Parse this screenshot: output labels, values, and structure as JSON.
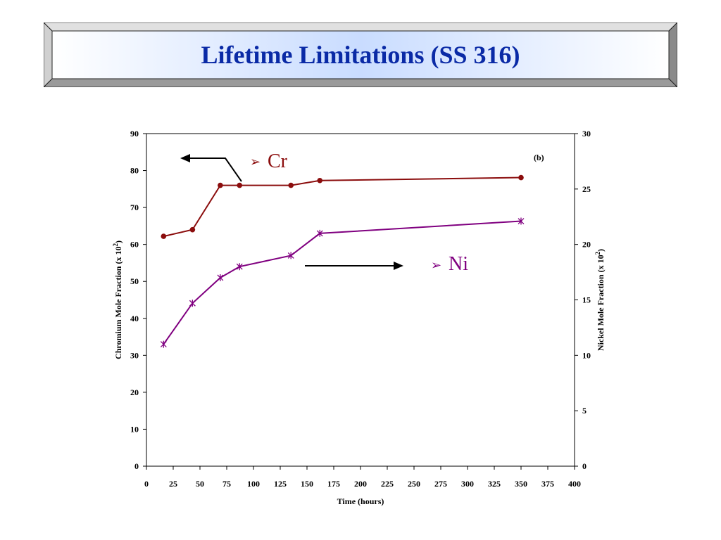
{
  "slide": {
    "title": "Lifetime Limitations (SS 316)"
  },
  "chart_data": {
    "type": "line",
    "xlabel": "Time (hours)",
    "ylabel_left": "Chromium Mole Fraction (x 10",
    "ylabel_right": "Nickel Mole Fraction (x 10",
    "ylabel_exponent": "2",
    "xlim": [
      0,
      400
    ],
    "ylim_left": [
      0,
      90
    ],
    "ylim_right": [
      0,
      30
    ],
    "x_ticks": [
      0,
      25,
      50,
      75,
      100,
      125,
      150,
      175,
      200,
      225,
      250,
      275,
      300,
      325,
      350,
      375,
      400
    ],
    "y_ticks_left": [
      0,
      10,
      20,
      30,
      40,
      50,
      60,
      70,
      80,
      90
    ],
    "y_ticks_right": [
      0,
      5,
      10,
      15,
      20,
      25,
      30
    ],
    "grid": false,
    "panel_label": "(b)",
    "series": [
      {
        "name": "Cr",
        "axis": "left",
        "marker": "circle",
        "color": "#8b0d0d",
        "x": [
          16,
          43,
          69,
          87,
          135,
          162,
          350
        ],
        "y": [
          62.2,
          64.0,
          76.0,
          76.0,
          76.0,
          77.3,
          78.1
        ]
      },
      {
        "name": "Ni",
        "axis": "right",
        "marker": "star",
        "color": "#800080",
        "x": [
          16,
          43,
          69,
          87,
          135,
          162,
          350
        ],
        "y": [
          11.0,
          14.7,
          17.0,
          18.0,
          19.0,
          21.0,
          22.1
        ]
      }
    ],
    "annotations": {
      "cr_label": "Cr",
      "ni_label": "Ni",
      "bullet": "➢"
    }
  }
}
